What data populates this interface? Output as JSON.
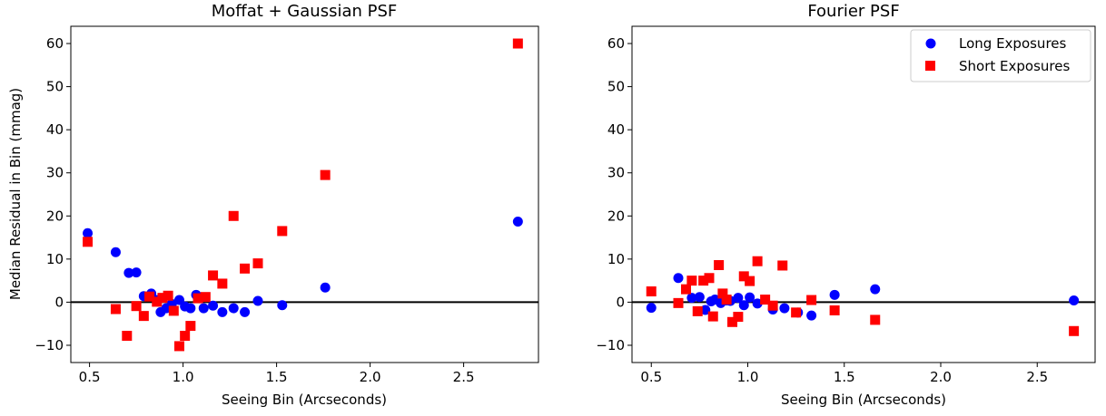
{
  "colors": {
    "long": "#0000ff",
    "short": "#ff0000",
    "zero_line": "#000000"
  },
  "legend": {
    "placement": "upper-right",
    "panel": 1
  },
  "chart_data": [
    {
      "type": "scatter",
      "title": "Moffat + Gaussian PSF",
      "xlabel": "Seeing Bin (Arcseconds)",
      "ylabel": "Median Residual in Bin (mmag)",
      "xlim": [
        0.4,
        2.9
      ],
      "ylim": [
        -14,
        64
      ],
      "xticks": [
        "0.5",
        "1.0",
        "1.5",
        "2.0",
        "2.5"
      ],
      "yticks": [
        "−10",
        "0",
        "10",
        "20",
        "30",
        "40",
        "50",
        "60"
      ],
      "grid": false,
      "reference_line_y": 0,
      "series": [
        {
          "name": "Long Exposures",
          "marker": "circle",
          "points": [
            [
              0.49,
              16
            ],
            [
              0.64,
              11.6
            ],
            [
              0.71,
              6.8
            ],
            [
              0.75,
              6.9
            ],
            [
              0.79,
              1.4
            ],
            [
              0.83,
              2.0
            ],
            [
              0.86,
              0.5
            ],
            [
              0.88,
              -2.3
            ],
            [
              0.91,
              -1.4
            ],
            [
              0.94,
              -0.4
            ],
            [
              0.98,
              0.5
            ],
            [
              1.01,
              -1.0
            ],
            [
              1.04,
              -1.4
            ],
            [
              1.07,
              1.7
            ],
            [
              1.11,
              -1.4
            ],
            [
              1.16,
              -0.8
            ],
            [
              1.21,
              -2.3
            ],
            [
              1.27,
              -1.4
            ],
            [
              1.33,
              -2.3
            ],
            [
              1.4,
              0.3
            ],
            [
              1.53,
              -0.7
            ],
            [
              1.76,
              3.4
            ],
            [
              2.79,
              18.7
            ]
          ]
        },
        {
          "name": "Short Exposures",
          "marker": "square",
          "points": [
            [
              0.49,
              14
            ],
            [
              0.64,
              -1.6
            ],
            [
              0.7,
              -7.8
            ],
            [
              0.75,
              -0.9
            ],
            [
              0.79,
              -3.2
            ],
            [
              0.82,
              1.3
            ],
            [
              0.86,
              0.1
            ],
            [
              0.89,
              1.0
            ],
            [
              0.92,
              1.5
            ],
            [
              0.95,
              -2.0
            ],
            [
              0.98,
              -10.2
            ],
            [
              1.01,
              -7.8
            ],
            [
              1.04,
              -5.5
            ],
            [
              1.08,
              0.9
            ],
            [
              1.12,
              1.2
            ],
            [
              1.16,
              6.2
            ],
            [
              1.21,
              4.3
            ],
            [
              1.27,
              20.0
            ],
            [
              1.33,
              7.8
            ],
            [
              1.4,
              9.0
            ],
            [
              1.53,
              16.5
            ],
            [
              1.76,
              29.5
            ],
            [
              2.79,
              60.0
            ]
          ]
        }
      ]
    },
    {
      "type": "scatter",
      "title": "Fourier PSF",
      "xlabel": "Seeing Bin (Arcseconds)",
      "ylabel": "",
      "xlim": [
        0.4,
        2.8
      ],
      "ylim": [
        -14,
        64
      ],
      "xticks": [
        "0.5",
        "1.0",
        "1.5",
        "2.0",
        "2.5"
      ],
      "yticks": [
        "−10",
        "0",
        "10",
        "20",
        "30",
        "40",
        "50",
        "60"
      ],
      "grid": false,
      "reference_line_y": 0,
      "series": [
        {
          "name": "Long Exposures",
          "marker": "circle",
          "points": [
            [
              0.5,
              -1.3
            ],
            [
              0.64,
              5.6
            ],
            [
              0.71,
              1.0
            ],
            [
              0.75,
              1.2
            ],
            [
              0.78,
              -1.8
            ],
            [
              0.81,
              0.2
            ],
            [
              0.83,
              0.6
            ],
            [
              0.86,
              -0.2
            ],
            [
              0.89,
              0.4
            ],
            [
              0.91,
              0.3
            ],
            [
              0.95,
              1.0
            ],
            [
              0.98,
              -0.7
            ],
            [
              1.01,
              1.1
            ],
            [
              1.05,
              -0.3
            ],
            [
              1.13,
              -1.7
            ],
            [
              1.19,
              -1.4
            ],
            [
              1.26,
              -2.4
            ],
            [
              1.33,
              -3.1
            ],
            [
              1.45,
              1.7
            ],
            [
              1.66,
              3.0
            ],
            [
              2.69,
              0.4
            ]
          ]
        },
        {
          "name": "Short Exposures",
          "marker": "square",
          "points": [
            [
              0.5,
              2.5
            ],
            [
              0.64,
              -0.2
            ],
            [
              0.68,
              3.0
            ],
            [
              0.71,
              5.0
            ],
            [
              0.74,
              -2.1
            ],
            [
              0.77,
              5.0
            ],
            [
              0.8,
              5.6
            ],
            [
              0.82,
              -3.3
            ],
            [
              0.85,
              8.6
            ],
            [
              0.87,
              2.0
            ],
            [
              0.89,
              0.6
            ],
            [
              0.92,
              -4.6
            ],
            [
              0.95,
              -3.4
            ],
            [
              0.98,
              6.0
            ],
            [
              1.01,
              4.9
            ],
            [
              1.05,
              9.5
            ],
            [
              1.09,
              0.6
            ],
            [
              1.13,
              -0.8
            ],
            [
              1.18,
              8.5
            ],
            [
              1.25,
              -2.4
            ],
            [
              1.33,
              0.5
            ],
            [
              1.45,
              -1.9
            ],
            [
              1.66,
              -4.1
            ],
            [
              2.69,
              -6.7
            ]
          ]
        }
      ]
    }
  ]
}
